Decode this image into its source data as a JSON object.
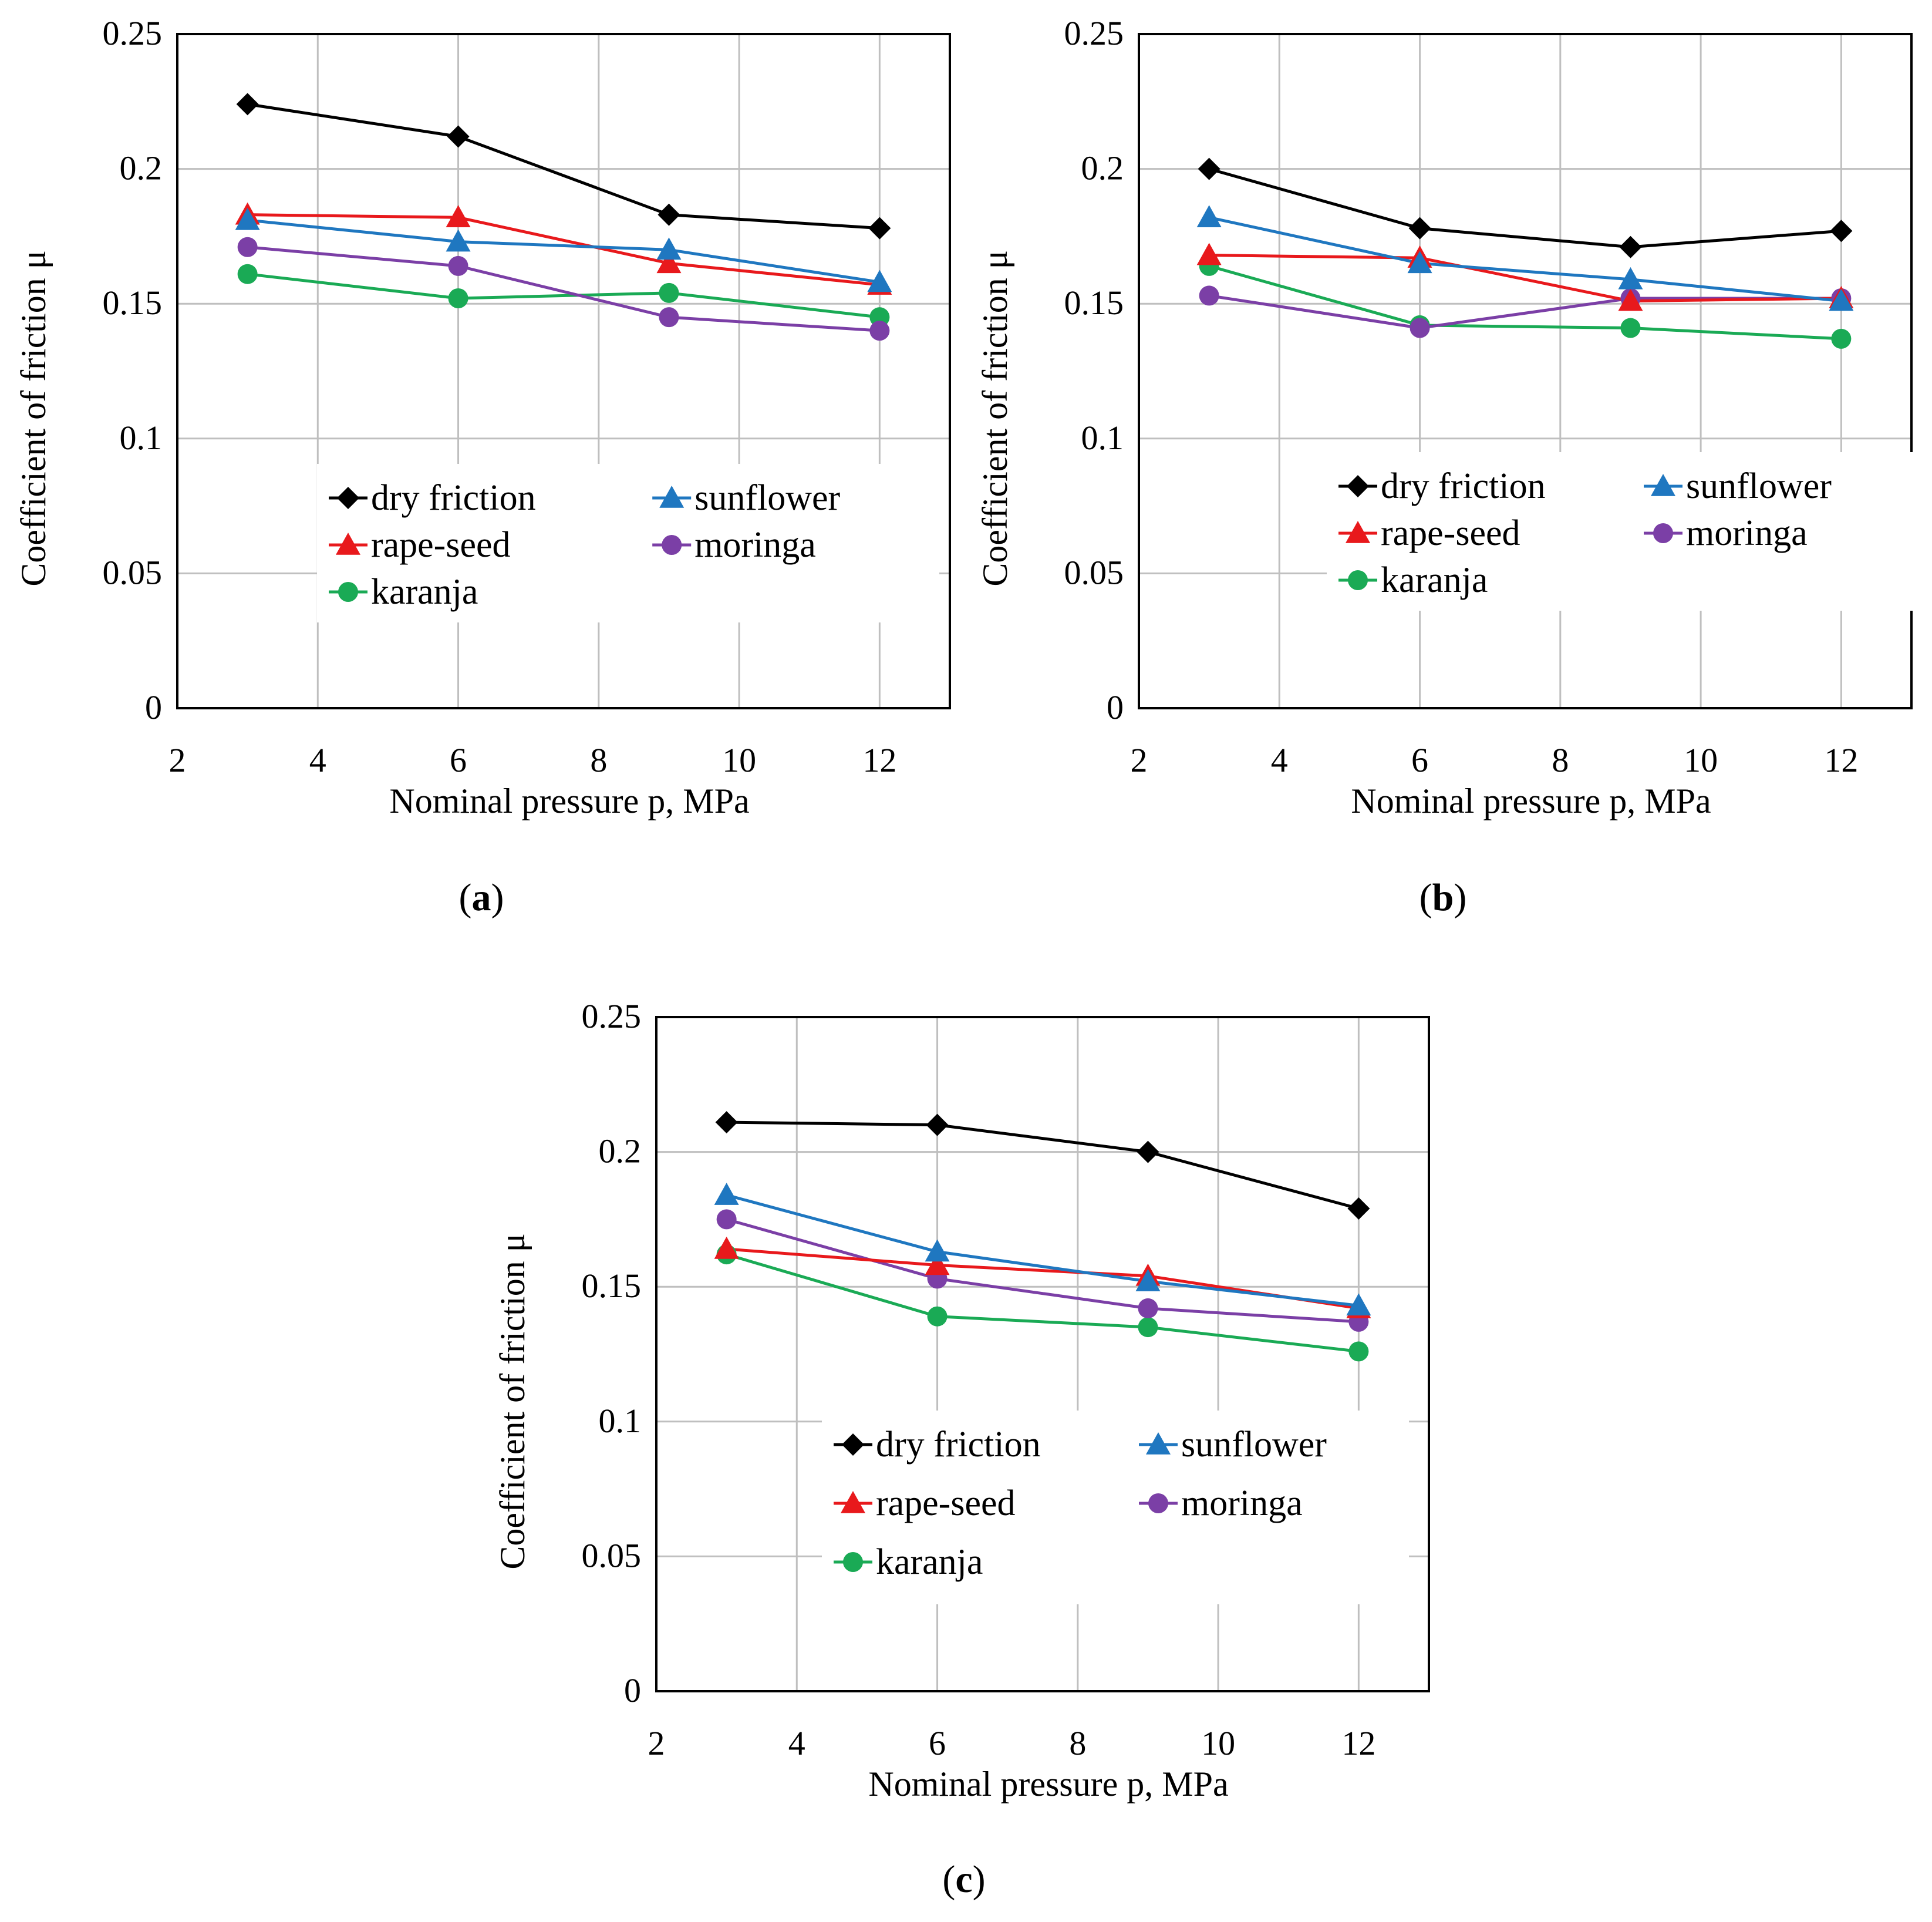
{
  "colors": {
    "dry_friction": "#000000",
    "sunflower": "#1f77c0",
    "rape_seed": "#e8191c",
    "moringa": "#7b3fa6",
    "karanja": "#1aaa55",
    "grid": "#bfbfbf",
    "axis": "#000000"
  },
  "chart_data": [
    {
      "type": "line",
      "panel_label": "a",
      "xlabel": "Nominal pressure p, MPa",
      "ylabel": "Coefficient of friction μ",
      "xlim": [
        2,
        13
      ],
      "ylim": [
        0,
        0.25
      ],
      "xticks": [
        2,
        4,
        6,
        8,
        10,
        12
      ],
      "xtick_labels": [
        "2",
        "4",
        "6",
        "8",
        "10",
        "12"
      ],
      "yticks": [
        0,
        0.05,
        0.1,
        0.15,
        0.2,
        0.25
      ],
      "ytick_labels": [
        "0",
        "0.05",
        "0.1",
        "0.15",
        "0.2",
        "0.25"
      ],
      "grid": true,
      "x": [
        3,
        6,
        9,
        12
      ],
      "series": [
        {
          "key": "dry_friction",
          "name": "dry friction",
          "marker": "diamond",
          "values": [
            0.224,
            0.212,
            0.183,
            0.178
          ]
        },
        {
          "key": "sunflower",
          "name": "sunflower",
          "marker": "triangle",
          "values": [
            0.181,
            0.173,
            0.17,
            0.158
          ]
        },
        {
          "key": "rape_seed",
          "name": "rape-seed",
          "marker": "triangle",
          "values": [
            0.183,
            0.182,
            0.165,
            0.157
          ]
        },
        {
          "key": "moringa",
          "name": "moringa",
          "marker": "circle",
          "values": [
            0.171,
            0.164,
            0.145,
            0.14
          ]
        },
        {
          "key": "karanja",
          "name": "karanja",
          "marker": "circle",
          "values": [
            0.161,
            0.152,
            0.154,
            0.145
          ]
        }
      ]
    },
    {
      "type": "line",
      "panel_label": "b",
      "xlabel": "Nominal pressure p, MPa",
      "ylabel": "Coefficient of friction μ",
      "xlim": [
        2,
        13
      ],
      "ylim": [
        0,
        0.25
      ],
      "xticks": [
        2,
        4,
        6,
        8,
        10,
        12
      ],
      "xtick_labels": [
        "2",
        "4",
        "6",
        "8",
        "10",
        "12"
      ],
      "yticks": [
        0,
        0.05,
        0.1,
        0.15,
        0.2,
        0.25
      ],
      "ytick_labels": [
        "0",
        "0.05",
        "0.1",
        "0.15",
        "0.2",
        "0.25"
      ],
      "grid": true,
      "x": [
        3,
        6,
        9,
        12
      ],
      "series": [
        {
          "key": "dry_friction",
          "name": "dry friction",
          "marker": "diamond",
          "values": [
            0.2,
            0.178,
            0.171,
            0.177
          ]
        },
        {
          "key": "sunflower",
          "name": "sunflower",
          "marker": "triangle",
          "values": [
            0.182,
            0.165,
            0.159,
            0.151
          ]
        },
        {
          "key": "rape_seed",
          "name": "rape-seed",
          "marker": "triangle",
          "values": [
            0.168,
            0.167,
            0.151,
            0.152
          ]
        },
        {
          "key": "moringa",
          "name": "moringa",
          "marker": "circle",
          "values": [
            0.153,
            0.141,
            0.152,
            0.152
          ]
        },
        {
          "key": "karanja",
          "name": "karanja",
          "marker": "circle",
          "values": [
            0.164,
            0.142,
            0.141,
            0.137
          ]
        }
      ]
    },
    {
      "type": "line",
      "panel_label": "c",
      "xlabel": "Nominal pressure p, MPa",
      "ylabel": "Coefficient of friction μ",
      "xlim": [
        2,
        13
      ],
      "ylim": [
        0,
        0.25
      ],
      "xticks": [
        2,
        4,
        6,
        8,
        10,
        12
      ],
      "xtick_labels": [
        "2",
        "4",
        "6",
        "8",
        "10",
        "12"
      ],
      "yticks": [
        0,
        0.05,
        0.1,
        0.15,
        0.2,
        0.25
      ],
      "ytick_labels": [
        "0",
        "0.05",
        "0.1",
        "0.15",
        "0.2",
        "0.25"
      ],
      "grid": true,
      "x": [
        3,
        6,
        9,
        12
      ],
      "series": [
        {
          "key": "dry_friction",
          "name": "dry friction",
          "marker": "diamond",
          "values": [
            0.211,
            0.21,
            0.2,
            0.179
          ]
        },
        {
          "key": "sunflower",
          "name": "sunflower",
          "marker": "triangle",
          "values": [
            0.184,
            0.163,
            0.152,
            0.143
          ]
        },
        {
          "key": "rape_seed",
          "name": "rape-seed",
          "marker": "triangle",
          "values": [
            0.164,
            0.158,
            0.154,
            0.142
          ]
        },
        {
          "key": "moringa",
          "name": "moringa",
          "marker": "circle",
          "values": [
            0.175,
            0.153,
            0.142,
            0.137
          ]
        },
        {
          "key": "karanja",
          "name": "karanja",
          "marker": "circle",
          "values": [
            0.162,
            0.139,
            0.135,
            0.126
          ]
        }
      ]
    }
  ]
}
